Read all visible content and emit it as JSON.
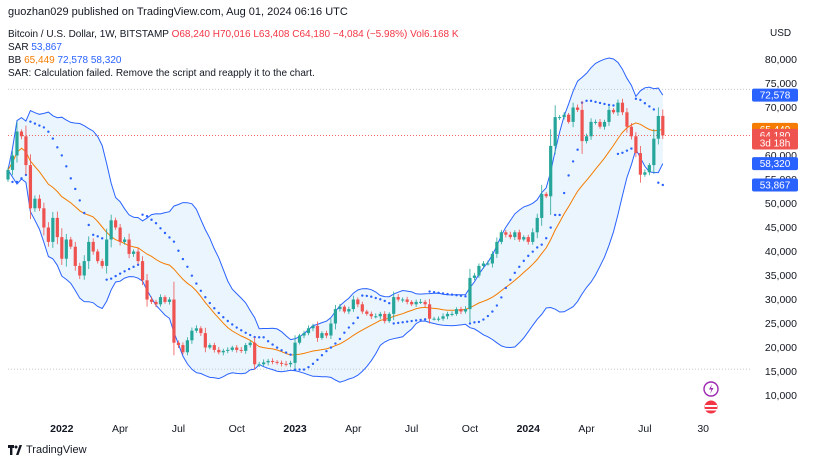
{
  "publisher": "guozhan029 published on TradingView.com, Aug 01, 2024 06:16 UTC",
  "legend": {
    "symbol": "Bitcoin / U.S. Dollar, 1W, BITSTAMP",
    "o": "O68,240",
    "h": "H70,016",
    "l": "L63,408",
    "c": "C64,180",
    "change": "−4,084 (−5.98%)",
    "vol": "Vol6.168 K",
    "sar_label": "SAR",
    "sar_value": "53,867",
    "bb_label": "BB",
    "bb_basis": "65,449",
    "bb_upper": "72,578",
    "bb_lower": "58,320",
    "error": "SAR: Calculation failed. Remove the script and reapply it to the chart."
  },
  "currency": "USD",
  "footer_brand": "TradingView",
  "colors": {
    "up": "#26a69a",
    "down": "#ef5350",
    "band": "#2962ff",
    "basis": "#f57c00",
    "sar": "#2962ff",
    "band_fill": "#e3f2fd",
    "grid_dotted": "#b2b5be"
  },
  "chart_data": {
    "type": "candlestick",
    "xlabel": "",
    "ylabel": "",
    "ylim": [
      5000,
      85000
    ],
    "y_ticks": [
      10000,
      15000,
      20000,
      25000,
      30000,
      35000,
      40000,
      45000,
      50000,
      55000,
      60000,
      65000,
      70000,
      75000,
      80000
    ],
    "y_tick_labels": [
      "10,000",
      "15,000",
      "20,000",
      "25,000",
      "30,000",
      "35,000",
      "40,000",
      "45,000",
      "50,000",
      "55,000",
      "60,000",
      "65,000",
      "70,000",
      "75,000",
      "80,000"
    ],
    "x_ticks": [
      {
        "label": "2022",
        "bar": 12,
        "bold": true
      },
      {
        "label": "Apr",
        "bar": 25,
        "bold": false
      },
      {
        "label": "Jul",
        "bar": 38,
        "bold": false
      },
      {
        "label": "Oct",
        "bar": 51,
        "bold": false
      },
      {
        "label": "2023",
        "bar": 64,
        "bold": true
      },
      {
        "label": "Apr",
        "bar": 77,
        "bold": false
      },
      {
        "label": "Jul",
        "bar": 90,
        "bold": false
      },
      {
        "label": "Oct",
        "bar": 103,
        "bold": false
      },
      {
        "label": "2024",
        "bar": 116,
        "bold": true
      },
      {
        "label": "Apr",
        "bar": 129,
        "bold": false
      },
      {
        "label": "Jul",
        "bar": 142,
        "bold": false
      },
      {
        "label": "30",
        "bar": 155,
        "bold": false
      }
    ],
    "close": [
      57000,
      60000,
      65000,
      64000,
      58000,
      49000,
      51000,
      49000,
      45000,
      42000,
      47000,
      43000,
      38500,
      42500,
      41000,
      37000,
      35000,
      38000,
      42000,
      40000,
      38000,
      37000,
      42500,
      46500,
      45000,
      42000,
      42500,
      39500,
      40000,
      38000,
      34000,
      30000,
      29500,
      29000,
      30500,
      29500,
      30000,
      21000,
      20500,
      19000,
      21500,
      23500,
      24000,
      23000,
      20000,
      20500,
      19500,
      19000,
      19300,
      19500,
      20000,
      19500,
      19300,
      20500,
      21000,
      16500,
      16500,
      16900,
      17200,
      17000,
      16800,
      16600,
      16500,
      16800,
      21000,
      22500,
      23000,
      24000,
      24500,
      22000,
      23000,
      22500,
      25000,
      28000,
      28500,
      27500,
      28000,
      30000,
      29000,
      27500,
      27000,
      26500,
      26500,
      27000,
      25500,
      27000,
      30500,
      30000,
      30000,
      29500,
      29000,
      29500,
      29500,
      29000,
      26000,
      26000,
      26000,
      26500,
      27000,
      27000,
      28000,
      27500,
      28000,
      34500,
      35000,
      37000,
      37500,
      37500,
      39500,
      42000,
      44000,
      43500,
      43000,
      44000,
      42500,
      43000,
      42000,
      44000,
      47000,
      52000,
      51500,
      62000,
      68000,
      68000,
      68500,
      67000,
      70000,
      69500,
      63000,
      64000,
      67000,
      67000,
      66000,
      67000,
      69500,
      69000,
      71000,
      69000,
      66000,
      64000,
      60500,
      56000,
      56500,
      58000,
      63500,
      68240,
      64180
    ],
    "series": [
      {
        "name": "BB",
        "values": [
          72578,
          58320,
          65449
        ]
      },
      {
        "name": "SAR",
        "values": [
          53867
        ]
      }
    ],
    "last_price_labels": [
      {
        "text": "72,578",
        "value": 72578,
        "color": "#2962ff"
      },
      {
        "text": "65,449",
        "value": 65449,
        "color": "#f57c00"
      },
      {
        "text": "64,180",
        "value": 64180,
        "color": "#ef5350"
      },
      {
        "text": "3d 18h",
        "value": 62600,
        "color": "#ef5350"
      },
      {
        "text": "58,320",
        "value": 58320,
        "color": "#2962ff"
      },
      {
        "text": "53,867",
        "value": 53867,
        "color": "#2962ff"
      }
    ],
    "reference_lines": [
      73800,
      15500,
      64180
    ]
  }
}
